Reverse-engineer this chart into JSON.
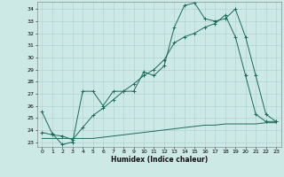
{
  "xlabel": "Humidex (Indice chaleur)",
  "xlim": [
    -0.5,
    23.5
  ],
  "ylim": [
    22.6,
    34.6
  ],
  "xticks": [
    0,
    1,
    2,
    3,
    4,
    5,
    6,
    7,
    8,
    9,
    10,
    11,
    12,
    13,
    14,
    15,
    16,
    17,
    18,
    19,
    20,
    21,
    22,
    23
  ],
  "yticks": [
    23,
    24,
    25,
    26,
    27,
    28,
    29,
    30,
    31,
    32,
    33,
    34
  ],
  "background_color": "#cce9e6",
  "grid_color": "#aacfcc",
  "line_color": "#1a6b5a",
  "line1_x": [
    0,
    1,
    2,
    3,
    4,
    5,
    6,
    7,
    8,
    9,
    10,
    11,
    12,
    13,
    14,
    15,
    16,
    17,
    18,
    19,
    20,
    21,
    22,
    23
  ],
  "line1_y": [
    25.5,
    23.7,
    22.8,
    23.0,
    27.2,
    27.2,
    26.0,
    27.2,
    27.2,
    27.2,
    28.8,
    28.5,
    29.3,
    32.5,
    34.3,
    34.5,
    33.2,
    33.0,
    33.2,
    34.0,
    31.7,
    28.5,
    25.3,
    24.7
  ],
  "line2_x": [
    0,
    1,
    2,
    3,
    4,
    5,
    6,
    7,
    8,
    9,
    10,
    11,
    12,
    13,
    14,
    15,
    16,
    17,
    18,
    19,
    20,
    21,
    22,
    23
  ],
  "line2_y": [
    23.3,
    23.3,
    23.3,
    23.3,
    23.3,
    23.3,
    23.4,
    23.5,
    23.6,
    23.7,
    23.8,
    23.9,
    24.0,
    24.1,
    24.2,
    24.3,
    24.4,
    24.4,
    24.5,
    24.5,
    24.5,
    24.5,
    24.6,
    24.6
  ],
  "line3_x": [
    0,
    1,
    2,
    3,
    4,
    5,
    6,
    7,
    8,
    9,
    10,
    11,
    12,
    13,
    14,
    15,
    16,
    17,
    18,
    19,
    20,
    21,
    22,
    23
  ],
  "line3_y": [
    23.8,
    23.6,
    23.5,
    23.2,
    24.2,
    25.2,
    25.8,
    26.5,
    27.2,
    27.8,
    28.5,
    29.0,
    29.8,
    31.2,
    31.7,
    32.0,
    32.5,
    32.8,
    33.5,
    31.7,
    28.5,
    25.3,
    24.7,
    24.7
  ]
}
